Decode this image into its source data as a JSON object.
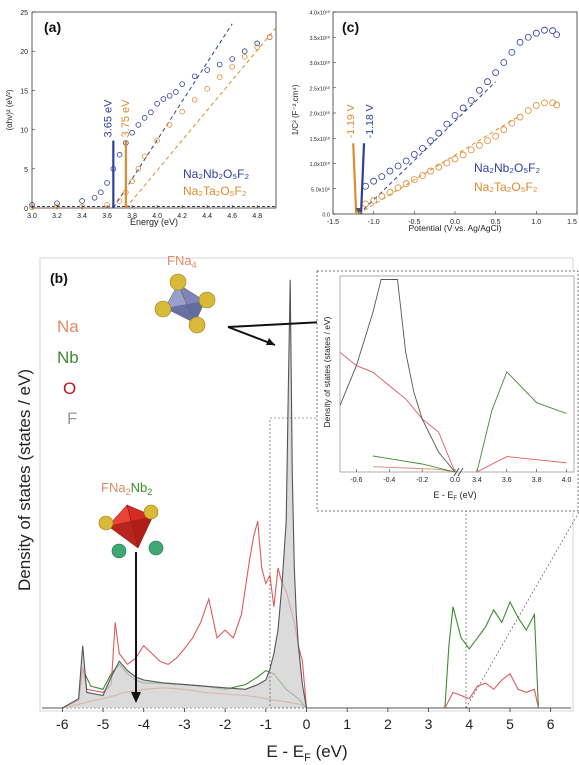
{
  "chart_data": [
    {
      "panel": "(a)",
      "type": "scatter",
      "xlabel": "Energy (eV)",
      "ylabel": "(αhν)² (eV²)",
      "xlim": [
        3.0,
        4.95
      ],
      "ylim": [
        0,
        25
      ],
      "xticks": [
        "3.0",
        "3.2",
        "3.4",
        "3.6",
        "3.8",
        "4.0",
        "4.2",
        "4.4",
        "4.6",
        "4.8"
      ],
      "yticks": [
        "0",
        "5",
        "10",
        "15",
        "20",
        "25"
      ],
      "series": [
        {
          "name": "Na₂Nb₂O₅F₂",
          "color": "#2f3f9e",
          "x": [
            3.0,
            3.2,
            3.4,
            3.5,
            3.55,
            3.6,
            3.65,
            3.7,
            3.75,
            3.8,
            3.85,
            3.9,
            3.95,
            4.0,
            4.05,
            4.1,
            4.15,
            4.2,
            4.3,
            4.4,
            4.5,
            4.6,
            4.7,
            4.8,
            4.9
          ],
          "y": [
            0.4,
            0.6,
            0.9,
            1.3,
            2.0,
            3.2,
            5.0,
            6.8,
            8.3,
            9.6,
            10.6,
            11.5,
            12.2,
            13.3,
            13.9,
            14.3,
            14.8,
            15.8,
            16.8,
            17.6,
            18.3,
            19.0,
            20.0,
            21.0,
            21.8
          ],
          "fit_line": {
            "x": [
              3.65,
              4.6
            ],
            "y": [
              0,
              23.5
            ]
          },
          "gap_label": "3.65 eV",
          "gap": 3.65
        },
        {
          "name": "Na₂Ta₂O₅F₂",
          "color": "#e08a2e",
          "x": [
            3.0,
            3.2,
            3.4,
            3.6,
            3.7,
            3.75,
            3.8,
            3.85,
            3.9,
            4.0,
            4.1,
            4.2,
            4.3,
            4.4,
            4.5,
            4.6,
            4.7,
            4.8,
            4.9
          ],
          "y": [
            0.1,
            0.2,
            0.2,
            0.4,
            0.9,
            2.0,
            3.4,
            5.0,
            6.6,
            8.6,
            10.6,
            12.3,
            13.8,
            15.2,
            16.7,
            18.0,
            19.3,
            20.5,
            21.8
          ],
          "fit_line": {
            "x": [
              3.75,
              4.95
            ],
            "y": [
              0,
              23.0
            ]
          },
          "gap_label": "3.75 eV",
          "gap": 3.75
        }
      ]
    },
    {
      "panel": "(c)",
      "type": "scatter",
      "xlabel": "Potential (V vs. Ag/AgCl)",
      "ylabel": "1/C² (F⁻².cm⁴)",
      "xlim": [
        -1.5,
        1.5
      ],
      "ylim": [
        0,
        40000000000.0
      ],
      "xticks": [
        "-1.5",
        "-1.0",
        "-0.5",
        "0.0",
        "0.5",
        "1.0",
        "1.5"
      ],
      "yticks": [
        "0.0",
        "5.0x10⁹",
        "1.0x10¹⁰",
        "1.5x10¹⁰",
        "2.0x10¹⁰",
        "2.5x10¹⁰",
        "3.0x10¹⁰",
        "3.5x10¹⁰",
        "4.0x10¹⁰"
      ],
      "series": [
        {
          "name": "Na₂Nb₂O₅F₂",
          "color": "#2f3f9e",
          "x": [
            -1.1,
            -1.0,
            -0.9,
            -0.8,
            -0.7,
            -0.6,
            -0.5,
            -0.4,
            -0.3,
            -0.2,
            -0.1,
            0.0,
            0.1,
            0.2,
            0.3,
            0.4,
            0.5,
            0.6,
            0.7,
            0.8,
            0.9,
            1.0,
            1.1,
            1.2,
            1.25
          ],
          "y": [
            5500000000.0,
            6500000000.0,
            7400000000.0,
            8500000000.0,
            9500000000.0,
            10500000000.0,
            11800000000.0,
            13000000000.0,
            14500000000.0,
            16000000000.0,
            17800000000.0,
            19500000000.0,
            21000000000.0,
            22500000000.0,
            24500000000.0,
            26200000000.0,
            28000000000.0,
            30000000000.0,
            32000000000.0,
            34000000000.0,
            35000000000.0,
            35800000000.0,
            36400000000.0,
            36300000000.0,
            35500000000.0
          ],
          "fit_line": {
            "x": [
              -1.18,
              0.5
            ],
            "y": [
              0,
              26200000000.0
            ]
          },
          "flat_label": "-1.18 V",
          "flat_band": -1.18
        },
        {
          "name": "Na₂Ta₂O₅F₂",
          "color": "#e08a2e",
          "x": [
            -1.1,
            -1.0,
            -0.9,
            -0.8,
            -0.7,
            -0.6,
            -0.5,
            -0.4,
            -0.3,
            -0.2,
            -0.1,
            0.0,
            0.1,
            0.2,
            0.3,
            0.4,
            0.5,
            0.6,
            0.7,
            0.8,
            0.9,
            1.0,
            1.1,
            1.2,
            1.25
          ],
          "y": [
            2000000000.0,
            2700000000.0,
            3500000000.0,
            4300000000.0,
            5200000000.0,
            6000000000.0,
            6800000000.0,
            7600000000.0,
            8500000000.0,
            9300000000.0,
            10100000000.0,
            10900000000.0,
            11700000000.0,
            12700000000.0,
            13600000000.0,
            14500000000.0,
            15400000000.0,
            16700000000.0,
            18000000000.0,
            19200000000.0,
            20500000000.0,
            21500000000.0,
            22000000000.0,
            22000000000.0,
            21600000000.0
          ],
          "fit_line": {
            "x": [
              -1.19,
              0.8
            ],
            "y": [
              0,
              19500000000.0
            ]
          },
          "flat_label": "-1.19 V",
          "flat_band": -1.19
        }
      ]
    },
    {
      "panel": "(b)",
      "type": "line",
      "xlabel": "E - E",
      "xlabel_sub": "F",
      "xlabel_unit": " (eV)",
      "ylabel": "Density of states (states / eV)",
      "xlim": [
        -6.5,
        6.5
      ],
      "ylim": [
        0,
        28
      ],
      "xticks": [
        "-6",
        "-5",
        "-4",
        "-3",
        "-2",
        "-1",
        "0",
        "1",
        "2",
        "3",
        "4",
        "5",
        "6"
      ],
      "series": [
        {
          "name": "Na",
          "color": "#e08a6a",
          "x": [
            -6.5,
            -6,
            -5.5,
            -5.2,
            -5,
            -4.7,
            -4.5,
            -4.2,
            -4,
            -3.5,
            -3,
            -2.5,
            -2,
            -1.5,
            -1.2,
            -1.0,
            -0.8,
            -0.5,
            -0.3,
            -0.1,
            0
          ],
          "y": [
            0,
            0,
            0.3,
            0.5,
            0.6,
            0.8,
            1.0,
            1.1,
            1.2,
            1.3,
            1.2,
            1.0,
            0.9,
            0.8,
            0.7,
            0.6,
            0.5,
            0.4,
            0.3,
            0.2,
            0
          ]
        },
        {
          "name": "Nb",
          "color": "#3c8c2e",
          "x": [
            -6.5,
            -6,
            -5.6,
            -5.5,
            -5.3,
            -5,
            -4.8,
            -4.6,
            -4.4,
            -4.2,
            -4,
            -3.5,
            -3,
            -2.5,
            -2,
            -1.5,
            -1.2,
            -1,
            -0.8,
            -0.5,
            -0.2,
            0,
            3.4,
            3.5,
            3.6,
            3.8,
            4.0,
            4.2,
            4.4,
            4.6,
            4.8,
            5.0,
            5.2,
            5.4,
            5.6,
            5.7,
            6.5
          ],
          "y": [
            0,
            0,
            0.5,
            2.5,
            1.4,
            1.2,
            2.2,
            2.8,
            2.2,
            1.8,
            1.6,
            1.6,
            1.5,
            1.4,
            1.2,
            1.5,
            2.0,
            2.4,
            2.2,
            1.2,
            0.6,
            0,
            0,
            4,
            6.5,
            4.5,
            3.8,
            4.5,
            5.2,
            6.3,
            5.5,
            6.8,
            5.8,
            5.0,
            6.0,
            0,
            0
          ]
        },
        {
          "name": "O",
          "color": "#e05a5a",
          "x": [
            -6.5,
            -6,
            -5.6,
            -5.5,
            -5.4,
            -5,
            -4.8,
            -4.7,
            -4.6,
            -4.4,
            -4.2,
            -4,
            -3.8,
            -3.6,
            -3.4,
            -3.2,
            -3,
            -2.8,
            -2.6,
            -2.4,
            -2.2,
            -2,
            -1.8,
            -1.6,
            -1.4,
            -1.3,
            -1.2,
            -1.1,
            -1.0,
            -0.9,
            -0.8,
            -0.7,
            -0.6,
            -0.5,
            -0.4,
            -0.3,
            -0.2,
            -0.1,
            0,
            3.4,
            3.6,
            3.8,
            4.0,
            4.2,
            4.4,
            4.6,
            4.8,
            5.0,
            5.2,
            5.4,
            5.6,
            5.7,
            6.5
          ],
          "y": [
            0,
            0,
            0.5,
            2.6,
            1.2,
            1.0,
            1.5,
            5.5,
            3.5,
            2.8,
            3.2,
            4.0,
            3.5,
            3.0,
            2.8,
            3.2,
            3.8,
            4.5,
            5.5,
            7.0,
            4.5,
            5.0,
            4.5,
            6.0,
            9.5,
            11.0,
            12.0,
            9.0,
            8.0,
            8.5,
            6.5,
            9.0,
            8.0,
            7.5,
            6.5,
            5.5,
            4.0,
            3.0,
            0,
            0,
            1.0,
            0.8,
            0.6,
            1.4,
            1.6,
            1.2,
            1.8,
            2.2,
            1.2,
            1.0,
            1.2,
            0,
            0
          ]
        },
        {
          "name": "F",
          "color": "#555555",
          "x": [
            -6.5,
            -6,
            -5.6,
            -5.5,
            -5.4,
            -5,
            -4.8,
            -4.6,
            -4.4,
            -4.2,
            -4,
            -3.5,
            -3,
            -2.5,
            -2,
            -1.5,
            -1.2,
            -1.0,
            -0.9,
            -0.8,
            -0.7,
            -0.6,
            -0.5,
            -0.45,
            -0.4,
            -0.35,
            -0.3,
            -0.25,
            -0.2,
            -0.1,
            0,
            6.5
          ],
          "y": [
            0,
            0,
            0.6,
            4.0,
            1.0,
            0.8,
            2.0,
            3.0,
            2.4,
            2.0,
            1.8,
            1.6,
            1.5,
            1.4,
            1.3,
            1.2,
            1.5,
            1.8,
            2.5,
            3.5,
            5.0,
            8.0,
            12.0,
            20.0,
            27.5,
            15.0,
            9.0,
            6.0,
            4.0,
            1.5,
            0,
            0
          ]
        }
      ],
      "legend": [
        "Na",
        "Nb",
        "O",
        "F"
      ],
      "annotations": {
        "tetra_top_label": "FNa",
        "tetra_top_sub": "4",
        "tetra_bottom_label_a": "FNa",
        "tetra_bottom_sub_a": "2",
        "tetra_bottom_label_b": "Nb",
        "tetra_bottom_sub_b": "2"
      },
      "inset": {
        "ylabel": "Density of states (states / eV)",
        "xlabel": "E - E",
        "xlabel_sub": "F",
        "xlabel_unit": " (eV)",
        "xticks_left": [
          "-0.6",
          "-0.4",
          "-0.2",
          "0.0"
        ],
        "xticks_right": [
          "3.4",
          "3.6",
          "3.8",
          "4.0"
        ]
      }
    }
  ],
  "panel_labels": {
    "a": "(a)",
    "b": "(b)",
    "c": "(c)"
  },
  "colors": {
    "blue": "#2f3f9e",
    "orange": "#e08a2e",
    "na": "#e08a6a",
    "nb": "#3c8c2e",
    "o": "#c0141c",
    "f": "#999999"
  }
}
